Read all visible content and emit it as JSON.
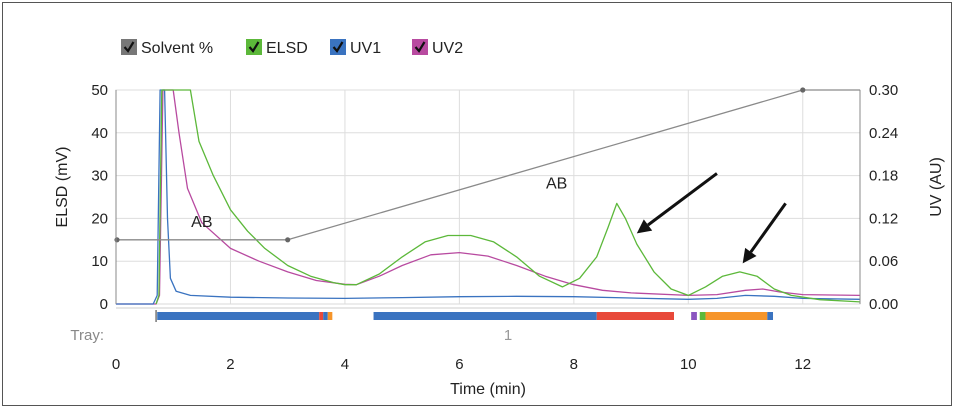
{
  "chart_data": {
    "type": "line",
    "legend": {
      "placement": "top-left",
      "items": [
        {
          "label": "Solvent %",
          "color": "#777777",
          "checked": true
        },
        {
          "label": "ELSD",
          "color": "#5cb83a",
          "checked": true
        },
        {
          "label": "UV1",
          "color": "#3a73c0",
          "checked": true
        },
        {
          "label": "UV2",
          "color": "#b84aa0",
          "checked": true
        }
      ]
    },
    "xlabel": "Time (min)",
    "ylabel_left": "ELSD (mV)",
    "ylabel_right": "UV (AU)",
    "xlim": [
      0,
      13
    ],
    "ylim_left": [
      0,
      50
    ],
    "ylim_right": [
      0,
      0.3
    ],
    "x_ticks": [
      "0",
      "2",
      "4",
      "6",
      "8",
      "10",
      "12"
    ],
    "y_ticks_left": [
      "0",
      "10",
      "20",
      "30",
      "40",
      "50"
    ],
    "y_ticks_right": [
      "0.00",
      "0.06",
      "0.12",
      "0.18",
      "0.24",
      "0.30"
    ],
    "grid": true,
    "tray_label": "Tray:",
    "tray_number": "1",
    "annotations": [
      {
        "text": "AB",
        "x": 1.5,
        "y": 18
      },
      {
        "text": "AB",
        "x": 7.7,
        "y": 27
      }
    ],
    "arrows": [
      {
        "from": [
          10.5,
          30.5
        ],
        "to": [
          9.1,
          16.5
        ]
      },
      {
        "from": [
          11.7,
          23.5
        ],
        "to": [
          10.95,
          9.5
        ]
      }
    ],
    "series": [
      {
        "name": "Solvent %",
        "color": "#8a8a8a",
        "axis": "left",
        "markers": true,
        "points": [
          [
            0,
            15
          ],
          [
            3,
            15
          ],
          [
            12,
            50
          ],
          [
            13,
            50
          ]
        ]
      },
      {
        "name": "ELSD",
        "color": "#5cb83a",
        "axis": "left",
        "points": [
          [
            0.7,
            0
          ],
          [
            0.75,
            2
          ],
          [
            0.8,
            50
          ],
          [
            1.3,
            50
          ],
          [
            1.45,
            38
          ],
          [
            1.7,
            30
          ],
          [
            2.0,
            22
          ],
          [
            2.3,
            17
          ],
          [
            2.6,
            13
          ],
          [
            3.0,
            9
          ],
          [
            3.4,
            6.5
          ],
          [
            3.8,
            5
          ],
          [
            4.0,
            4.5
          ],
          [
            4.2,
            4.5
          ],
          [
            4.6,
            7
          ],
          [
            5.0,
            11
          ],
          [
            5.4,
            14.5
          ],
          [
            5.8,
            16
          ],
          [
            6.2,
            16
          ],
          [
            6.6,
            14.5
          ],
          [
            7.0,
            11
          ],
          [
            7.4,
            6.5
          ],
          [
            7.8,
            4
          ],
          [
            8.1,
            6
          ],
          [
            8.4,
            11
          ],
          [
            8.6,
            18
          ],
          [
            8.75,
            23.5
          ],
          [
            8.9,
            20
          ],
          [
            9.1,
            14
          ],
          [
            9.4,
            7.5
          ],
          [
            9.7,
            3.5
          ],
          [
            10.0,
            2
          ],
          [
            10.3,
            4
          ],
          [
            10.6,
            6.5
          ],
          [
            10.9,
            7.5
          ],
          [
            11.2,
            6.5
          ],
          [
            11.5,
            3.5
          ],
          [
            11.8,
            2
          ],
          [
            12.3,
            1
          ],
          [
            13,
            0.5
          ]
        ]
      },
      {
        "name": "UV1",
        "color": "#3a73c0",
        "axis": "left",
        "points": [
          [
            0,
            0
          ],
          [
            0.65,
            0
          ],
          [
            0.72,
            2
          ],
          [
            0.77,
            50
          ],
          [
            0.85,
            50
          ],
          [
            0.9,
            20
          ],
          [
            0.95,
            6
          ],
          [
            1.05,
            3
          ],
          [
            1.3,
            2
          ],
          [
            2,
            1.6
          ],
          [
            3,
            1.4
          ],
          [
            4,
            1.3
          ],
          [
            5,
            1.5
          ],
          [
            6,
            1.7
          ],
          [
            7,
            1.8
          ],
          [
            8,
            1.7
          ],
          [
            9,
            1.4
          ],
          [
            10,
            1.1
          ],
          [
            10.5,
            1.3
          ],
          [
            11,
            2
          ],
          [
            11.5,
            1.8
          ],
          [
            12,
            1.3
          ],
          [
            13,
            1.1
          ]
        ]
      },
      {
        "name": "UV2",
        "color": "#b84aa0",
        "axis": "left",
        "points": [
          [
            0,
            0
          ],
          [
            0.7,
            0
          ],
          [
            0.76,
            2
          ],
          [
            0.82,
            50
          ],
          [
            1.0,
            50
          ],
          [
            1.1,
            40
          ],
          [
            1.25,
            27
          ],
          [
            1.5,
            19
          ],
          [
            2,
            13
          ],
          [
            2.5,
            10
          ],
          [
            3,
            7.5
          ],
          [
            3.5,
            5.5
          ],
          [
            4,
            4.6
          ],
          [
            4.2,
            4.5
          ],
          [
            4.6,
            6.5
          ],
          [
            5,
            9
          ],
          [
            5.5,
            11.5
          ],
          [
            6,
            12
          ],
          [
            6.5,
            11.2
          ],
          [
            7,
            9
          ],
          [
            7.5,
            6.5
          ],
          [
            8,
            4.5
          ],
          [
            8.5,
            3.2
          ],
          [
            9,
            2.6
          ],
          [
            10,
            2
          ],
          [
            10.5,
            2.2
          ],
          [
            11,
            3.2
          ],
          [
            11.3,
            3.5
          ],
          [
            11.6,
            2.8
          ],
          [
            12,
            2.2
          ],
          [
            13,
            2
          ]
        ]
      }
    ],
    "tray_segments": [
      {
        "start": 0.72,
        "end": 3.55,
        "color": "#3a73c0"
      },
      {
        "start": 3.55,
        "end": 3.62,
        "color": "#e8493a"
      },
      {
        "start": 3.62,
        "end": 3.7,
        "color": "#3a73c0"
      },
      {
        "start": 3.7,
        "end": 3.78,
        "color": "#f6952a"
      },
      {
        "start": 4.5,
        "end": 8.4,
        "color": "#3a73c0"
      },
      {
        "start": 8.4,
        "end": 9.75,
        "color": "#e8493a"
      },
      {
        "start": 10.05,
        "end": 10.15,
        "color": "#8a55c0"
      },
      {
        "start": 10.2,
        "end": 10.3,
        "color": "#5cb83a"
      },
      {
        "start": 10.3,
        "end": 11.38,
        "color": "#f6952a"
      },
      {
        "start": 11.38,
        "end": 11.48,
        "color": "#3a73c0"
      }
    ]
  }
}
